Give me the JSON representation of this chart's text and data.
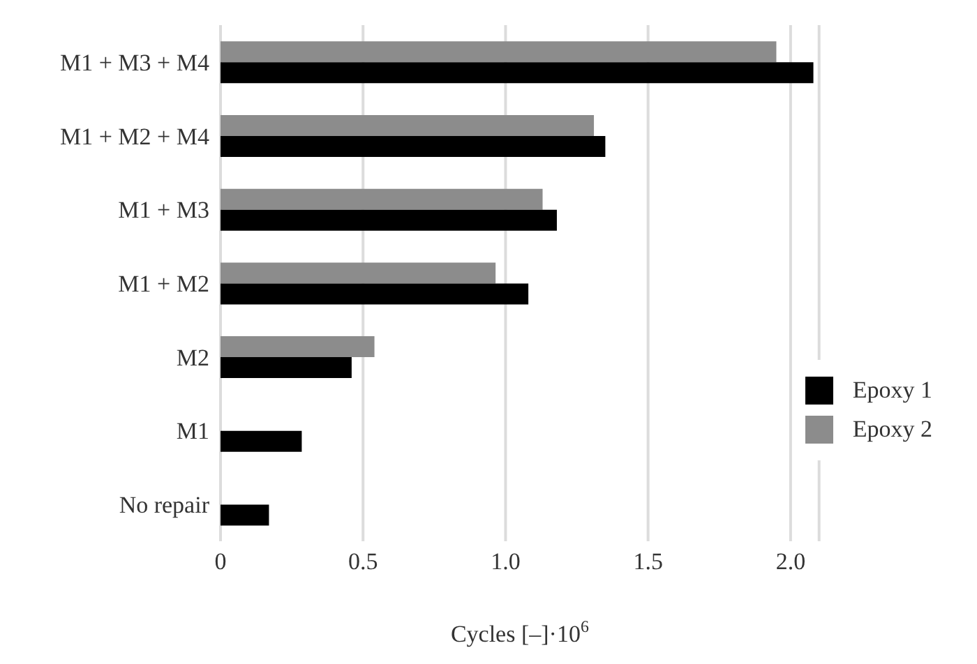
{
  "chart_data": {
    "type": "bar",
    "orientation": "horizontal",
    "xlabel": "Cycles [–]·10$^{6}$",
    "categories": [
      "M1 + M3 + M4",
      "M1 + M2 + M4",
      "M1 + M3",
      "M1 + M2",
      "M2",
      "M1",
      "No repair"
    ],
    "series": [
      {
        "name": "Epoxy 1",
        "color": "#000000",
        "values": [
          2.08,
          1.35,
          1.18,
          1.08,
          0.46,
          0.285,
          0.17
        ]
      },
      {
        "name": "Epoxy 2",
        "color": "#8c8c8c",
        "values": [
          1.95,
          1.31,
          1.13,
          0.965,
          0.54,
          null,
          null
        ]
      }
    ],
    "xlim": [
      0,
      2.1
    ],
    "xticks": [
      0,
      0.5,
      {
        "value": 1,
        "label": "1.0"
      },
      1.5,
      {
        "value": 2,
        "label": "2.0"
      }
    ],
    "grid": "x",
    "legend": "right"
  }
}
